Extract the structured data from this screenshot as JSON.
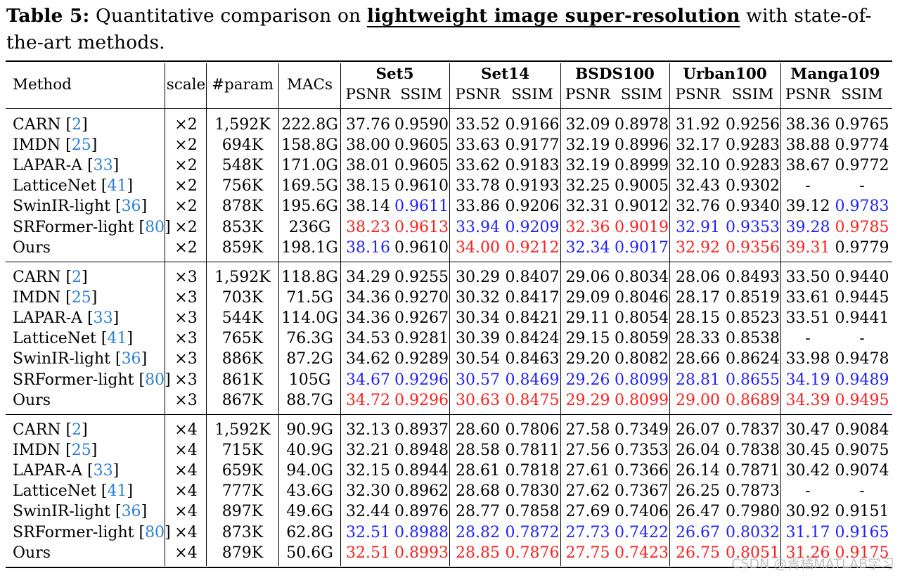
{
  "caption": {
    "label": "Table 5:",
    "text_before": "Quantitative comparison on",
    "keyword": "lightweight image super-resolution",
    "text_after": "with state-of-the-art methods."
  },
  "table": {
    "headers": {
      "method": "Method",
      "scale": "scale",
      "param": "#param",
      "macs": "MACs",
      "psnr": "PSNR",
      "ssim": "SSIM"
    },
    "datasets": [
      "Set5",
      "Set14",
      "BSDS100",
      "Urban100",
      "Manga109"
    ],
    "groups": [
      {
        "rows": [
          {
            "method": "CARN",
            "cite": "2",
            "scale": "×2",
            "param": "1,592K",
            "macs": "222.8G",
            "cells": [
              {
                "v": "37.76"
              },
              {
                "v": "0.9590"
              },
              {
                "v": "33.52"
              },
              {
                "v": "0.9166"
              },
              {
                "v": "32.09"
              },
              {
                "v": "0.8978"
              },
              {
                "v": "31.92"
              },
              {
                "v": "0.9256"
              },
              {
                "v": "38.36"
              },
              {
                "v": "0.9765"
              }
            ]
          },
          {
            "method": "IMDN",
            "cite": "25",
            "scale": "×2",
            "param": "694K",
            "macs": "158.8G",
            "cells": [
              {
                "v": "38.00"
              },
              {
                "v": "0.9605"
              },
              {
                "v": "33.63"
              },
              {
                "v": "0.9177"
              },
              {
                "v": "32.19"
              },
              {
                "v": "0.8996"
              },
              {
                "v": "32.17"
              },
              {
                "v": "0.9283"
              },
              {
                "v": "38.88"
              },
              {
                "v": "0.9774"
              }
            ]
          },
          {
            "method": "LAPAR-A",
            "cite": "33",
            "scale": "×2",
            "param": "548K",
            "macs": "171.0G",
            "cells": [
              {
                "v": "38.01"
              },
              {
                "v": "0.9605"
              },
              {
                "v": "33.62"
              },
              {
                "v": "0.9183"
              },
              {
                "v": "32.19"
              },
              {
                "v": "0.8999"
              },
              {
                "v": "32.10"
              },
              {
                "v": "0.9283"
              },
              {
                "v": "38.67"
              },
              {
                "v": "0.9772"
              }
            ]
          },
          {
            "method": "LatticeNet",
            "cite": "41",
            "scale": "×2",
            "param": "756K",
            "macs": "169.5G",
            "cells": [
              {
                "v": "38.15"
              },
              {
                "v": "0.9610"
              },
              {
                "v": "33.78"
              },
              {
                "v": "0.9193"
              },
              {
                "v": "32.25"
              },
              {
                "v": "0.9005"
              },
              {
                "v": "32.43"
              },
              {
                "v": "0.9302"
              },
              {
                "v": "-"
              },
              {
                "v": "-"
              }
            ]
          },
          {
            "method": "SwinIR-light",
            "cite": "36",
            "scale": "×2",
            "param": "878K",
            "macs": "195.6G",
            "cells": [
              {
                "v": "38.14"
              },
              {
                "v": "0.9611",
                "c": "blue"
              },
              {
                "v": "33.86"
              },
              {
                "v": "0.9206"
              },
              {
                "v": "32.31"
              },
              {
                "v": "0.9012"
              },
              {
                "v": "32.76"
              },
              {
                "v": "0.9340"
              },
              {
                "v": "39.12"
              },
              {
                "v": "0.9783",
                "c": "blue"
              }
            ]
          },
          {
            "method": "SRFormer-light",
            "cite": "80",
            "scale": "×2",
            "param": "853K",
            "macs": "236G",
            "cells": [
              {
                "v": "38.23",
                "c": "red"
              },
              {
                "v": "0.9613",
                "c": "red"
              },
              {
                "v": "33.94",
                "c": "blue"
              },
              {
                "v": "0.9209",
                "c": "blue"
              },
              {
                "v": "32.36",
                "c": "red"
              },
              {
                "v": "0.9019",
                "c": "red"
              },
              {
                "v": "32.91",
                "c": "blue"
              },
              {
                "v": "0.9353",
                "c": "blue"
              },
              {
                "v": "39.28",
                "c": "blue"
              },
              {
                "v": "0.9785",
                "c": "red"
              }
            ]
          },
          {
            "method": "Ours",
            "cite": "",
            "scale": "×2",
            "param": "859K",
            "macs": "198.1G",
            "cells": [
              {
                "v": "38.16",
                "c": "blue"
              },
              {
                "v": "0.9610"
              },
              {
                "v": "34.00",
                "c": "red"
              },
              {
                "v": "0.9212",
                "c": "red"
              },
              {
                "v": "32.34",
                "c": "blue"
              },
              {
                "v": "0.9017",
                "c": "blue"
              },
              {
                "v": "32.92",
                "c": "red"
              },
              {
                "v": "0.9356",
                "c": "red"
              },
              {
                "v": "39.31",
                "c": "red"
              },
              {
                "v": "0.9779"
              }
            ]
          }
        ]
      },
      {
        "rows": [
          {
            "method": "CARN",
            "cite": "2",
            "scale": "×3",
            "param": "1,592K",
            "macs": "118.8G",
            "cells": [
              {
                "v": "34.29"
              },
              {
                "v": "0.9255"
              },
              {
                "v": "30.29"
              },
              {
                "v": "0.8407"
              },
              {
                "v": "29.06"
              },
              {
                "v": "0.8034"
              },
              {
                "v": "28.06"
              },
              {
                "v": "0.8493"
              },
              {
                "v": "33.50"
              },
              {
                "v": "0.9440"
              }
            ]
          },
          {
            "method": "IMDN",
            "cite": "25",
            "scale": "×3",
            "param": "703K",
            "macs": "71.5G",
            "cells": [
              {
                "v": "34.36"
              },
              {
                "v": "0.9270"
              },
              {
                "v": "30.32"
              },
              {
                "v": "0.8417"
              },
              {
                "v": "29.09"
              },
              {
                "v": "0.8046"
              },
              {
                "v": "28.17"
              },
              {
                "v": "0.8519"
              },
              {
                "v": "33.61"
              },
              {
                "v": "0.9445"
              }
            ]
          },
          {
            "method": "LAPAR-A",
            "cite": "33",
            "scale": "×3",
            "param": "544K",
            "macs": "114.0G",
            "cells": [
              {
                "v": "34.36"
              },
              {
                "v": "0.9267"
              },
              {
                "v": "30.34"
              },
              {
                "v": "0.8421"
              },
              {
                "v": "29.11"
              },
              {
                "v": "0.8054"
              },
              {
                "v": "28.15"
              },
              {
                "v": "0.8523"
              },
              {
                "v": "33.51"
              },
              {
                "v": "0.9441"
              }
            ]
          },
          {
            "method": "LatticeNet",
            "cite": "41",
            "scale": "×3",
            "param": "765K",
            "macs": "76.3G",
            "cells": [
              {
                "v": "34.53"
              },
              {
                "v": "0.9281"
              },
              {
                "v": "30.39"
              },
              {
                "v": "0.8424"
              },
              {
                "v": "29.15"
              },
              {
                "v": "0.8059"
              },
              {
                "v": "28.33"
              },
              {
                "v": "0.8538"
              },
              {
                "v": "-"
              },
              {
                "v": "-"
              }
            ]
          },
          {
            "method": "SwinIR-light",
            "cite": "36",
            "scale": "×3",
            "param": "886K",
            "macs": "87.2G",
            "cells": [
              {
                "v": "34.62"
              },
              {
                "v": "0.9289"
              },
              {
                "v": "30.54"
              },
              {
                "v": "0.8463"
              },
              {
                "v": "29.20"
              },
              {
                "v": "0.8082"
              },
              {
                "v": "28.66"
              },
              {
                "v": "0.8624"
              },
              {
                "v": "33.98"
              },
              {
                "v": "0.9478"
              }
            ]
          },
          {
            "method": "SRFormer-light",
            "cite": "80",
            "scale": "×3",
            "param": "861K",
            "macs": "105G",
            "cells": [
              {
                "v": "34.67",
                "c": "blue"
              },
              {
                "v": "0.9296",
                "c": "blue"
              },
              {
                "v": "30.57",
                "c": "blue"
              },
              {
                "v": "0.8469",
                "c": "blue"
              },
              {
                "v": "29.26",
                "c": "blue"
              },
              {
                "v": "0.8099",
                "c": "blue"
              },
              {
                "v": "28.81",
                "c": "blue"
              },
              {
                "v": "0.8655",
                "c": "blue"
              },
              {
                "v": "34.19",
                "c": "blue"
              },
              {
                "v": "0.9489",
                "c": "blue"
              }
            ]
          },
          {
            "method": "Ours",
            "cite": "",
            "scale": "×3",
            "param": "867K",
            "macs": "88.7G",
            "cells": [
              {
                "v": "34.72",
                "c": "red"
              },
              {
                "v": "0.9296",
                "c": "red"
              },
              {
                "v": "30.63",
                "c": "red"
              },
              {
                "v": "0.8475",
                "c": "red"
              },
              {
                "v": "29.29",
                "c": "red"
              },
              {
                "v": "0.8099",
                "c": "red"
              },
              {
                "v": "29.00",
                "c": "red"
              },
              {
                "v": "0.8689",
                "c": "red"
              },
              {
                "v": "34.39",
                "c": "red"
              },
              {
                "v": "0.9495",
                "c": "red"
              }
            ]
          }
        ]
      },
      {
        "rows": [
          {
            "method": "CARN",
            "cite": "2",
            "scale": "×4",
            "param": "1,592K",
            "macs": "90.9G",
            "cells": [
              {
                "v": "32.13"
              },
              {
                "v": "0.8937"
              },
              {
                "v": "28.60"
              },
              {
                "v": "0.7806"
              },
              {
                "v": "27.58"
              },
              {
                "v": "0.7349"
              },
              {
                "v": "26.07"
              },
              {
                "v": "0.7837"
              },
              {
                "v": "30.47"
              },
              {
                "v": "0.9084"
              }
            ]
          },
          {
            "method": "IMDN",
            "cite": "25",
            "scale": "×4",
            "param": "715K",
            "macs": "40.9G",
            "cells": [
              {
                "v": "32.21"
              },
              {
                "v": "0.8948"
              },
              {
                "v": "28.58"
              },
              {
                "v": "0.7811"
              },
              {
                "v": "27.56"
              },
              {
                "v": "0.7353"
              },
              {
                "v": "26.04"
              },
              {
                "v": "0.7838"
              },
              {
                "v": "30.45"
              },
              {
                "v": "0.9075"
              }
            ]
          },
          {
            "method": "LAPAR-A",
            "cite": "33",
            "scale": "×4",
            "param": "659K",
            "macs": "94.0G",
            "cells": [
              {
                "v": "32.15"
              },
              {
                "v": "0.8944"
              },
              {
                "v": "28.61"
              },
              {
                "v": "0.7818"
              },
              {
                "v": "27.61"
              },
              {
                "v": "0.7366"
              },
              {
                "v": "26.14"
              },
              {
                "v": "0.7871"
              },
              {
                "v": "30.42"
              },
              {
                "v": "0.9074"
              }
            ]
          },
          {
            "method": "LatticeNet",
            "cite": "41",
            "scale": "×4",
            "param": "777K",
            "macs": "43.6G",
            "cells": [
              {
                "v": "32.30"
              },
              {
                "v": "0.8962"
              },
              {
                "v": "28.68"
              },
              {
                "v": "0.7830"
              },
              {
                "v": "27.62"
              },
              {
                "v": "0.7367"
              },
              {
                "v": "26.25"
              },
              {
                "v": "0.7873"
              },
              {
                "v": "-"
              },
              {
                "v": "-"
              }
            ]
          },
          {
            "method": "SwinIR-light",
            "cite": "36",
            "scale": "×4",
            "param": "897K",
            "macs": "49.6G",
            "cells": [
              {
                "v": "32.44"
              },
              {
                "v": "0.8976"
              },
              {
                "v": "28.77"
              },
              {
                "v": "0.7858"
              },
              {
                "v": "27.69"
              },
              {
                "v": "0.7406"
              },
              {
                "v": "26.47"
              },
              {
                "v": "0.7980"
              },
              {
                "v": "30.92"
              },
              {
                "v": "0.9151"
              }
            ]
          },
          {
            "method": "SRFormer-light",
            "cite": "80",
            "scale": "×4",
            "param": "873K",
            "macs": "62.8G",
            "cells": [
              {
                "v": "32.51",
                "c": "blue"
              },
              {
                "v": "0.8988",
                "c": "blue"
              },
              {
                "v": "28.82",
                "c": "blue"
              },
              {
                "v": "0.7872",
                "c": "blue"
              },
              {
                "v": "27.73",
                "c": "blue"
              },
              {
                "v": "0.7422",
                "c": "blue"
              },
              {
                "v": "26.67",
                "c": "blue"
              },
              {
                "v": "0.8032",
                "c": "blue"
              },
              {
                "v": "31.17",
                "c": "blue"
              },
              {
                "v": "0.9165",
                "c": "blue"
              }
            ]
          },
          {
            "method": "Ours",
            "cite": "",
            "scale": "×4",
            "param": "879K",
            "macs": "50.6G",
            "cells": [
              {
                "v": "32.51",
                "c": "red"
              },
              {
                "v": "0.8993",
                "c": "red"
              },
              {
                "v": "28.85",
                "c": "red"
              },
              {
                "v": "0.7876",
                "c": "red"
              },
              {
                "v": "27.75",
                "c": "red"
              },
              {
                "v": "0.7423",
                "c": "red"
              },
              {
                "v": "26.75",
                "c": "red"
              },
              {
                "v": "0.8051",
                "c": "red"
              },
              {
                "v": "31.26",
                "c": "red"
              },
              {
                "v": "0.9175",
                "c": "red"
              }
            ]
          }
        ]
      }
    ]
  },
  "colors": {
    "best": "#ff1e1e",
    "second": "#1f1fff",
    "citation": "#2b7fd6",
    "watermark": "#b9b9b9"
  },
  "watermark": "CSDN @青橘MATLAB学习"
}
